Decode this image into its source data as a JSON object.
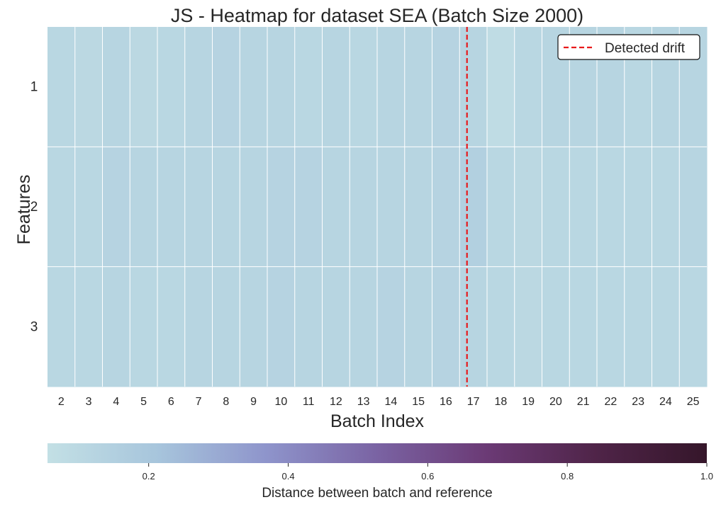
{
  "chart_data": {
    "type": "heatmap",
    "title": "JS - Heatmap for dataset SEA (Batch Size 2000)",
    "xlabel": "Batch Index",
    "ylabel": "Features",
    "x": [
      2,
      3,
      4,
      5,
      6,
      7,
      8,
      9,
      10,
      11,
      12,
      13,
      14,
      15,
      16,
      17,
      18,
      19,
      20,
      21,
      22,
      23,
      24,
      25
    ],
    "y": [
      1,
      2,
      3
    ],
    "values": [
      [
        0.11,
        0.1,
        0.12,
        0.1,
        0.11,
        0.12,
        0.13,
        0.12,
        0.12,
        0.11,
        0.12,
        0.11,
        0.12,
        0.12,
        0.13,
        0.12,
        0.08,
        0.11,
        0.12,
        0.12,
        0.12,
        0.11,
        0.12,
        0.12
      ],
      [
        0.11,
        0.11,
        0.13,
        0.12,
        0.12,
        0.12,
        0.12,
        0.12,
        0.13,
        0.13,
        0.12,
        0.12,
        0.12,
        0.12,
        0.13,
        0.15,
        0.11,
        0.1,
        0.11,
        0.11,
        0.11,
        0.11,
        0.11,
        0.12
      ],
      [
        0.11,
        0.11,
        0.12,
        0.11,
        0.11,
        0.12,
        0.12,
        0.12,
        0.13,
        0.12,
        0.12,
        0.12,
        0.13,
        0.12,
        0.13,
        0.12,
        0.11,
        0.1,
        0.11,
        0.11,
        0.11,
        0.11,
        0.11,
        0.11
      ]
    ],
    "drift": {
      "label": "Detected drift",
      "x": 16.77,
      "color": "#e8191b"
    },
    "colorbar": {
      "label": "Distance between batch and reference",
      "range": [
        0.055,
        1.0
      ],
      "ticks": [
        0.2,
        0.4,
        0.6,
        0.8,
        1.0
      ],
      "tick_labels": [
        "0.2",
        "0.4",
        "0.6",
        "0.8",
        "1.0"
      ],
      "colors": [
        "#c3e0e5",
        "#a7c5dc",
        "#8e94cb",
        "#7a63a3",
        "#6b3a75",
        "#4f2448",
        "#35162a"
      ]
    },
    "grid": true,
    "legend_position": "top-right"
  }
}
